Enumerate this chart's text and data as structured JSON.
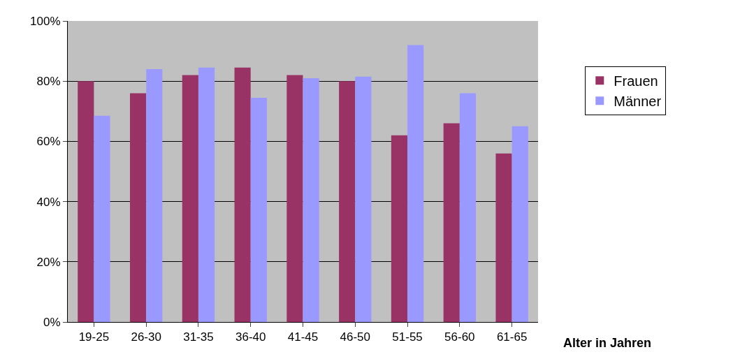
{
  "chart_data": {
    "type": "bar",
    "xlabel": "Alter in Jahren",
    "categories": [
      "19-25",
      "26-30",
      "31-35",
      "36-40",
      "41-45",
      "46-50",
      "51-55",
      "56-60",
      "61-65"
    ],
    "series": [
      {
        "name": "Frauen",
        "color": "#993366",
        "values": [
          80,
          76,
          82,
          84.5,
          82,
          80,
          62,
          66,
          56
        ]
      },
      {
        "name": "Männer",
        "color": "#9999ff",
        "values": [
          68.5,
          84,
          84.5,
          74.5,
          81,
          81.5,
          92,
          76,
          65
        ]
      }
    ],
    "ylim": [
      0,
      100
    ],
    "yticks": [
      {
        "value": 0,
        "label": "0%"
      },
      {
        "value": 20,
        "label": "20%"
      },
      {
        "value": 40,
        "label": "40%"
      },
      {
        "value": 60,
        "label": "60%"
      },
      {
        "value": 80,
        "label": "80%"
      },
      {
        "value": 100,
        "label": "100%"
      }
    ],
    "grid": "y",
    "legend": "right"
  }
}
